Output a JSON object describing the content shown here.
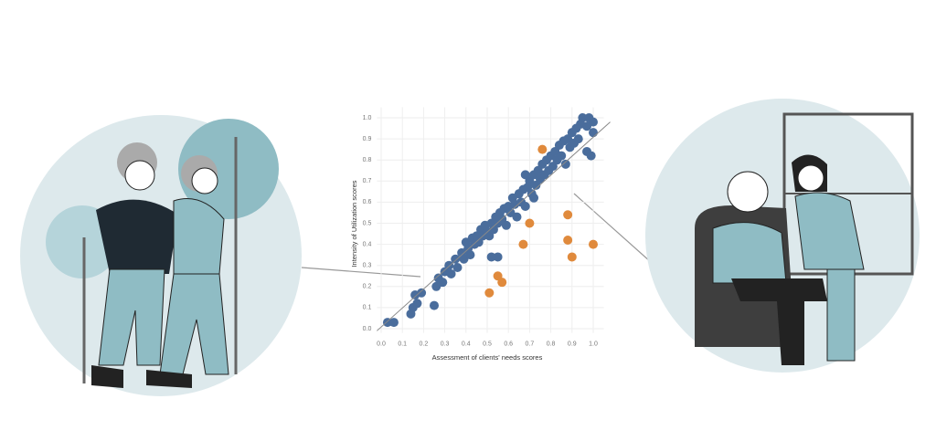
{
  "chart_data": {
    "type": "scatter",
    "x_label": "Assessment of clients' needs scores",
    "y_label": "Intensity of Utilization scores",
    "xlim": [
      -0.02,
      1.05
    ],
    "ylim": [
      -0.02,
      1.05
    ],
    "xticks": [
      {
        "value": 0,
        "label": "0.0"
      },
      0.1,
      0.2,
      0.3,
      0.4,
      0.5,
      0.6,
      0.7,
      0.8,
      0.9,
      {
        "value": 1,
        "label": "1.0"
      }
    ],
    "yticks": [
      {
        "value": 0,
        "label": "0.0"
      },
      0.1,
      0.2,
      0.3,
      0.4,
      0.5,
      0.6,
      0.7,
      0.8,
      0.9,
      {
        "value": 1,
        "label": "1.0"
      }
    ],
    "grid": true,
    "fit_line": {
      "x": [
        -0.02,
        1.08
      ],
      "y": [
        -0.01,
        0.98
      ],
      "color": "#888888"
    },
    "series": [
      {
        "color": "#4a6d9c",
        "x": [
          0.03,
          0.06,
          0.14,
          0.15,
          0.16,
          0.17,
          0.19,
          0.25,
          0.26,
          0.27,
          0.29,
          0.3,
          0.32,
          0.33,
          0.35,
          0.36,
          0.38,
          0.39,
          0.4,
          0.41,
          0.42,
          0.43,
          0.44,
          0.45,
          0.46,
          0.47,
          0.48,
          0.49,
          0.5,
          0.51,
          0.52,
          0.53,
          0.54,
          0.55,
          0.56,
          0.57,
          0.58,
          0.59,
          0.6,
          0.61,
          0.62,
          0.63,
          0.64,
          0.65,
          0.66,
          0.67,
          0.68,
          0.69,
          0.7,
          0.71,
          0.72,
          0.73,
          0.74,
          0.75,
          0.76,
          0.77,
          0.78,
          0.79,
          0.8,
          0.81,
          0.82,
          0.83,
          0.84,
          0.85,
          0.86,
          0.87,
          0.88,
          0.89,
          0.9,
          0.91,
          0.92,
          0.93,
          0.94,
          0.95,
          0.97,
          0.98,
          1.0,
          1.0,
          0.99,
          0.97,
          0.55,
          0.52,
          0.68,
          0.72
        ],
        "values": [
          0.03,
          0.03,
          0.07,
          0.1,
          0.16,
          0.12,
          0.17,
          0.11,
          0.2,
          0.24,
          0.22,
          0.27,
          0.3,
          0.26,
          0.33,
          0.29,
          0.36,
          0.33,
          0.41,
          0.38,
          0.35,
          0.43,
          0.4,
          0.44,
          0.41,
          0.47,
          0.44,
          0.49,
          0.46,
          0.44,
          0.5,
          0.47,
          0.53,
          0.5,
          0.55,
          0.52,
          0.57,
          0.49,
          0.58,
          0.55,
          0.62,
          0.59,
          0.53,
          0.64,
          0.6,
          0.66,
          0.58,
          0.67,
          0.7,
          0.64,
          0.73,
          0.68,
          0.75,
          0.71,
          0.78,
          0.73,
          0.8,
          0.75,
          0.82,
          0.77,
          0.84,
          0.8,
          0.87,
          0.82,
          0.89,
          0.78,
          0.9,
          0.86,
          0.93,
          0.88,
          0.95,
          0.9,
          0.97,
          1.0,
          0.96,
          1.0,
          0.93,
          0.98,
          0.82,
          0.84,
          0.34,
          0.34,
          0.73,
          0.62
        ]
      },
      {
        "color": "#e08a3c",
        "x": [
          0.76,
          0.7,
          0.67,
          0.88,
          0.88,
          0.9,
          1.0,
          0.55,
          0.57,
          0.51
        ],
        "values": [
          0.85,
          0.5,
          0.4,
          0.54,
          0.42,
          0.34,
          0.4,
          0.25,
          0.22,
          0.17
        ]
      }
    ]
  }
}
